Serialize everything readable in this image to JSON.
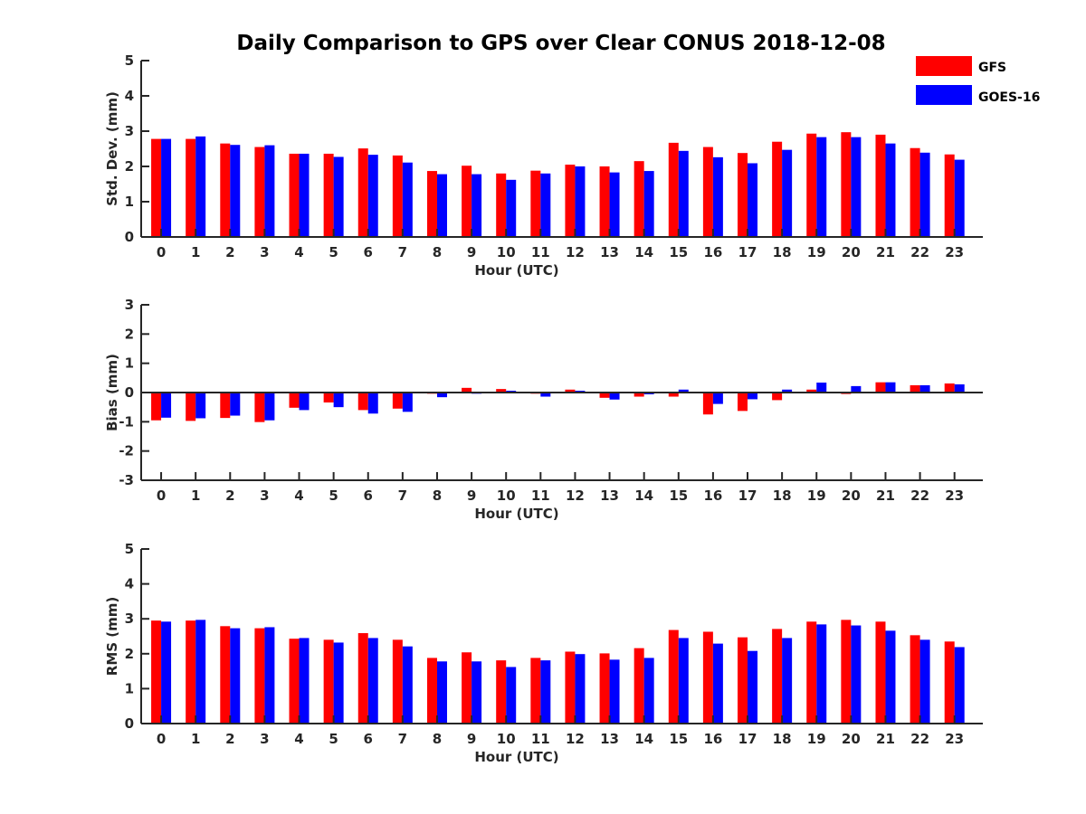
{
  "title": "Daily Comparison to GPS over Clear CONUS 2018-12-08",
  "colors": {
    "gfs": "#ff0000",
    "goes": "#0000ff",
    "axis": "#262626"
  },
  "legend": [
    "GFS",
    "GOES-16"
  ],
  "chart_data": [
    {
      "type": "bar",
      "ylabel": "Std. Dev. (mm)",
      "xlabel": "Hour (UTC)",
      "ylim": [
        0,
        5
      ],
      "yticks": [
        "0",
        "1",
        "2",
        "3",
        "4",
        "5"
      ],
      "categories": [
        "0",
        "1",
        "2",
        "3",
        "4",
        "5",
        "6",
        "7",
        "8",
        "9",
        "10",
        "11",
        "12",
        "13",
        "14",
        "15",
        "16",
        "17",
        "18",
        "19",
        "20",
        "21",
        "22",
        "23"
      ],
      "series": [
        {
          "name": "GFS",
          "values": [
            2.78,
            2.78,
            2.65,
            2.55,
            2.36,
            2.36,
            2.51,
            2.31,
            1.87,
            2.02,
            1.8,
            1.88,
            2.05,
            2.0,
            2.15,
            2.67,
            2.55,
            2.38,
            2.7,
            2.93,
            2.97,
            2.9,
            2.52,
            2.34
          ]
        },
        {
          "name": "GOES-16",
          "values": [
            2.78,
            2.85,
            2.61,
            2.6,
            2.36,
            2.27,
            2.33,
            2.11,
            1.78,
            1.78,
            1.62,
            1.8,
            2.0,
            1.83,
            1.87,
            2.44,
            2.26,
            2.09,
            2.47,
            2.83,
            2.83,
            2.65,
            2.39,
            2.19
          ]
        }
      ]
    },
    {
      "type": "bar",
      "ylabel": "Bias (mm)",
      "xlabel": "Hour (UTC)",
      "ylim": [
        -3,
        3
      ],
      "yticks": [
        "-3",
        "-2",
        "-1",
        "0",
        "1",
        "2",
        "3"
      ],
      "categories": [
        "0",
        "1",
        "2",
        "3",
        "4",
        "5",
        "6",
        "7",
        "8",
        "9",
        "10",
        "11",
        "12",
        "13",
        "14",
        "15",
        "16",
        "17",
        "18",
        "19",
        "20",
        "21",
        "22",
        "23"
      ],
      "series": [
        {
          "name": "GFS",
          "values": [
            -0.95,
            -0.97,
            -0.87,
            -1.01,
            -0.52,
            -0.34,
            -0.6,
            -0.55,
            -0.04,
            0.16,
            0.12,
            -0.04,
            0.1,
            -0.18,
            -0.14,
            -0.14,
            -0.75,
            -0.63,
            -0.26,
            0.1,
            -0.05,
            0.35,
            0.25,
            0.31
          ]
        },
        {
          "name": "GOES-16",
          "values": [
            -0.86,
            -0.88,
            -0.79,
            -0.95,
            -0.6,
            -0.5,
            -0.72,
            -0.66,
            -0.16,
            -0.04,
            0.06,
            -0.14,
            0.06,
            -0.24,
            -0.06,
            0.1,
            -0.39,
            -0.23,
            0.1,
            0.34,
            0.22,
            0.35,
            0.25,
            0.28
          ]
        }
      ]
    },
    {
      "type": "bar",
      "ylabel": "RMS (mm)",
      "xlabel": "Hour (UTC)",
      "ylim": [
        0,
        5
      ],
      "yticks": [
        "0",
        "1",
        "2",
        "3",
        "4",
        "5"
      ],
      "categories": [
        "0",
        "1",
        "2",
        "3",
        "4",
        "5",
        "6",
        "7",
        "8",
        "9",
        "10",
        "11",
        "12",
        "13",
        "14",
        "15",
        "16",
        "17",
        "18",
        "19",
        "20",
        "21",
        "22",
        "23"
      ],
      "series": [
        {
          "name": "GFS",
          "values": [
            2.95,
            2.95,
            2.79,
            2.73,
            2.43,
            2.4,
            2.59,
            2.4,
            1.88,
            2.04,
            1.81,
            1.88,
            2.06,
            2.01,
            2.16,
            2.68,
            2.63,
            2.47,
            2.71,
            2.92,
            2.97,
            2.92,
            2.53,
            2.35
          ]
        },
        {
          "name": "GOES-16",
          "values": [
            2.92,
            2.97,
            2.73,
            2.76,
            2.45,
            2.32,
            2.45,
            2.21,
            1.78,
            1.78,
            1.62,
            1.81,
            1.99,
            1.83,
            1.88,
            2.45,
            2.29,
            2.08,
            2.45,
            2.84,
            2.81,
            2.66,
            2.4,
            2.19
          ]
        }
      ]
    }
  ]
}
